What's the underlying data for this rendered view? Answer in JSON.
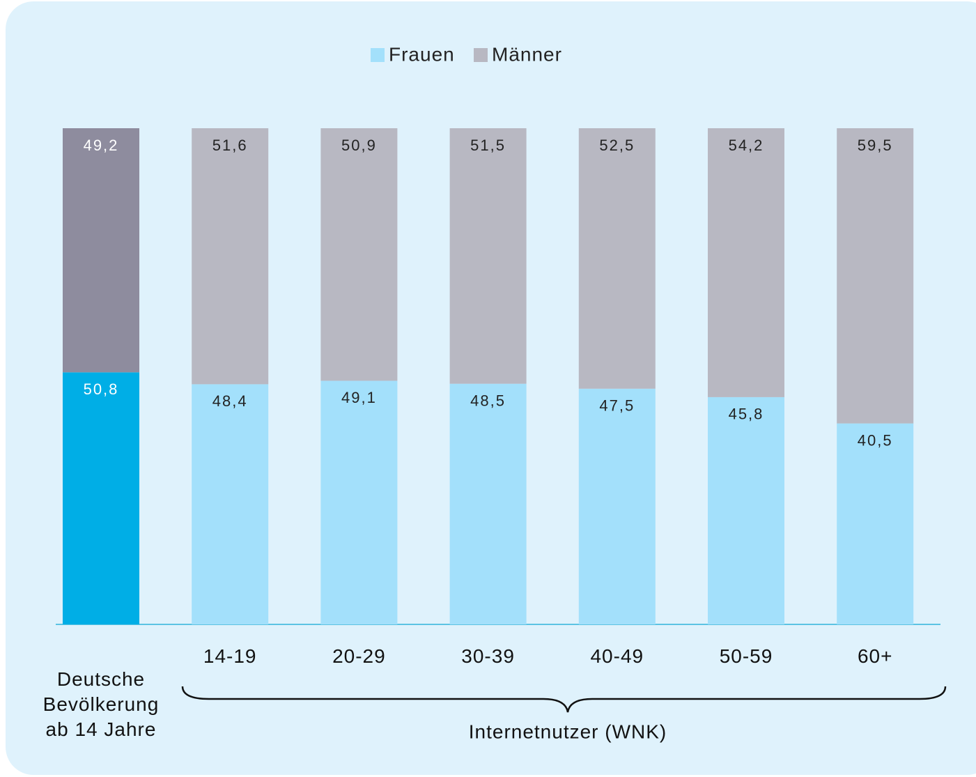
{
  "chart_data": {
    "type": "stacked_bar",
    "categories": [
      "Deutsche Bevölkerung ab 14 Jahre",
      "14-19",
      "20-29",
      "30-39",
      "40-49",
      "50-59",
      "60+"
    ],
    "series": [
      {
        "name": "Frauen",
        "color": "#a3e0fb",
        "colors": [
          "#00aee6",
          "#a3e0fb",
          "#a3e0fb",
          "#a3e0fb",
          "#a3e0fb",
          "#a3e0fb",
          "#a3e0fb"
        ],
        "label_colors": [
          "#ffffff",
          "#222222",
          "#222222",
          "#222222",
          "#222222",
          "#222222",
          "#222222"
        ],
        "values": [
          50.8,
          48.4,
          49.1,
          48.5,
          47.5,
          45.8,
          40.5
        ],
        "value_labels": [
          "50,8",
          "48,4",
          "49,1",
          "48,5",
          "47,5",
          "45,8",
          "40,5"
        ]
      },
      {
        "name": "Männer",
        "color": "#b8b8c2",
        "colors": [
          "#8e8c9e",
          "#b8b8c2",
          "#b8b8c2",
          "#b8b8c2",
          "#b8b8c2",
          "#b8b8c2",
          "#b8b8c2"
        ],
        "label_colors": [
          "#ffffff",
          "#222222",
          "#222222",
          "#222222",
          "#222222",
          "#222222",
          "#222222"
        ],
        "values": [
          49.2,
          51.6,
          50.9,
          51.5,
          52.5,
          54.2,
          59.5
        ],
        "value_labels": [
          "49,2",
          "51,6",
          "50,9",
          "51,5",
          "52,5",
          "54,2",
          "59,5"
        ]
      }
    ],
    "ylim": [
      0,
      100
    ],
    "legend": "top",
    "annotation": "Internetnutzer (WNK)"
  }
}
